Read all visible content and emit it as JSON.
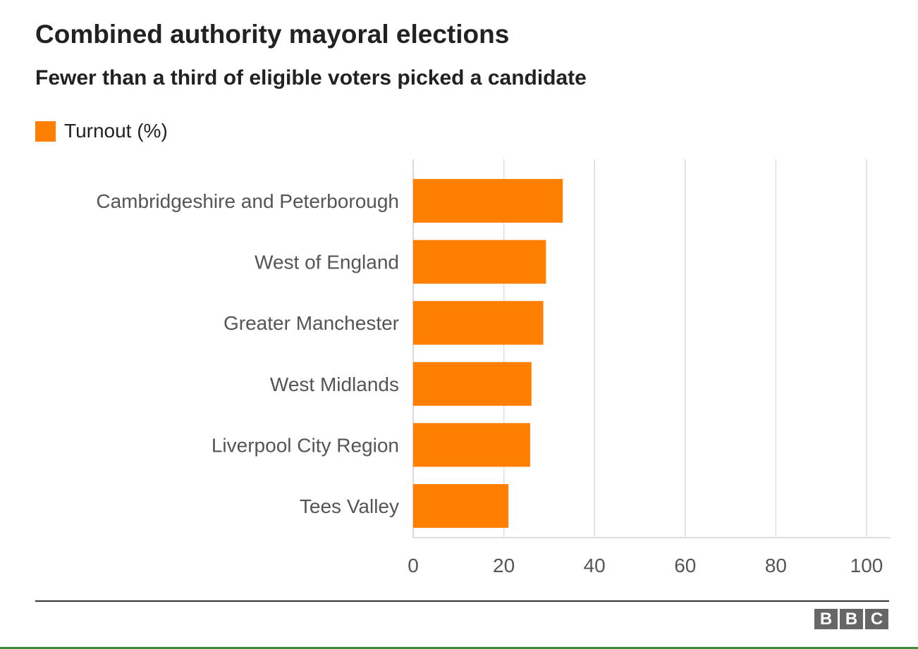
{
  "colors": {
    "bar": "#ff7f00",
    "grid": "#dddddd",
    "label": "#555555",
    "heading": "#222222"
  },
  "chart_data": {
    "type": "bar",
    "orientation": "horizontal",
    "title": "Combined authority mayoral elections",
    "subtitle": "Fewer than a third of eligible voters picked a candidate",
    "categories": [
      "Cambridgeshire and Peterborough",
      "West of England",
      "Greater Manchester",
      "West Midlands",
      "Liverpool City Region",
      "Tees Valley"
    ],
    "series": [
      {
        "name": "Turnout (%)",
        "values": [
          33.0,
          29.3,
          28.7,
          26.1,
          25.8,
          21.0
        ]
      }
    ],
    "xlim": [
      0,
      100
    ],
    "xticks": [
      "0",
      "20",
      "40",
      "60",
      "80",
      "100"
    ],
    "grid": true,
    "legend": "top-left"
  },
  "footer": {
    "logo_letters": [
      "B",
      "B",
      "C"
    ]
  }
}
